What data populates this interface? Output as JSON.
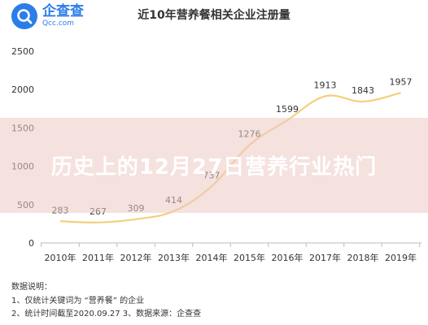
{
  "logo": {
    "name": "企查查",
    "domain": "Qcc.com"
  },
  "chart_data": {
    "type": "line",
    "title": "近10年营养餐相关企业注册量",
    "categories": [
      "2010年",
      "2011年",
      "2012年",
      "2013年",
      "2014年",
      "2015年",
      "2016年",
      "2017年",
      "2018年",
      "2019年"
    ],
    "values": [
      283,
      267,
      309,
      414,
      737,
      1276,
      1599,
      1913,
      1843,
      1957
    ],
    "y_ticks": [
      "2500",
      "2000",
      "1500",
      "1000",
      "500",
      "0"
    ],
    "ylim": [
      0,
      2500
    ],
    "xlabel": "",
    "ylabel": "",
    "grid": false,
    "line_color": "#f5cf7c"
  },
  "notes": {
    "heading": "数据说明：",
    "line1": "1、仅统计关键词为 “营养餐” 的企业",
    "line2": "2、统计时间截至2020.09.27   3、数据来源：企查查"
  },
  "banner": {
    "text": "历史上的12月27日营养行业热门"
  }
}
